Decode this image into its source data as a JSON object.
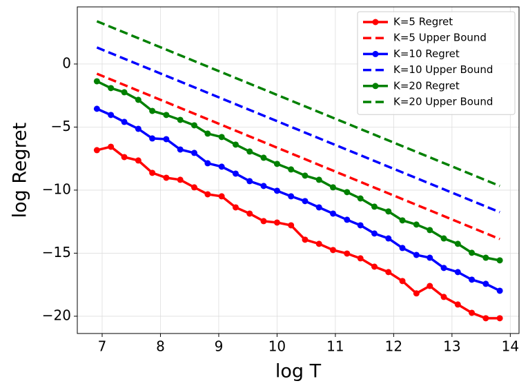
{
  "chart_data": {
    "type": "line",
    "xlabel": "log T",
    "ylabel": "log Regret",
    "xlim": [
      6.574,
      14.15
    ],
    "ylim": [
      -21.37,
      4.53
    ],
    "xticks": [
      7,
      8,
      9,
      10,
      11,
      12,
      13,
      14
    ],
    "yticks": [
      0,
      -5,
      -10,
      -15,
      -20
    ],
    "yticks_display": [
      {
        "value": 0,
        "label": "0"
      },
      {
        "value": -5,
        "label": "−5"
      },
      {
        "value": -10,
        "label": "−10"
      },
      {
        "value": -15,
        "label": "−15"
      },
      {
        "value": -20,
        "label": "−20"
      }
    ],
    "grid": true,
    "legend": "upper right",
    "x": [
      6.91,
      7.15,
      7.38,
      7.62,
      7.86,
      8.1,
      8.34,
      8.58,
      8.81,
      9.05,
      9.29,
      9.53,
      9.77,
      10.0,
      10.24,
      10.48,
      10.72,
      10.96,
      11.2,
      11.43,
      11.67,
      11.91,
      12.15,
      12.39,
      12.62,
      12.86,
      13.1,
      13.34,
      13.58,
      13.82
    ],
    "series": [
      {
        "name": "K=5 Regret",
        "color": "#ff0000",
        "linestyle": "solid",
        "marker": "o",
        "values": [
          -6.83,
          -6.56,
          -7.38,
          -7.65,
          -8.63,
          -9.02,
          -9.18,
          -9.78,
          -10.33,
          -10.49,
          -11.37,
          -11.86,
          -12.46,
          -12.57,
          -12.79,
          -13.93,
          -14.26,
          -14.75,
          -15.03,
          -15.41,
          -16.07,
          -16.5,
          -17.21,
          -18.19,
          -17.6,
          -18.47,
          -19.07,
          -19.73,
          -20.16,
          -20.16
        ]
      },
      {
        "name": "K=5 Upper Bound",
        "color": "#ff0000",
        "linestyle": "dashed",
        "marker": "none",
        "x": [
          6.91,
          13.82
        ],
        "values": [
          -0.77,
          -13.88
        ]
      },
      {
        "name": "K=10 Regret",
        "color": "#0000ff",
        "linestyle": "solid",
        "marker": "o",
        "values": [
          -3.55,
          -4.04,
          -4.59,
          -5.14,
          -5.9,
          -5.96,
          -6.78,
          -7.05,
          -7.87,
          -8.14,
          -8.69,
          -9.29,
          -9.67,
          -10.05,
          -10.49,
          -10.87,
          -11.37,
          -11.86,
          -12.35,
          -12.79,
          -13.44,
          -13.83,
          -14.59,
          -15.14,
          -15.36,
          -16.17,
          -16.5,
          -17.1,
          -17.43,
          -17.98
        ]
      },
      {
        "name": "K=10 Upper Bound",
        "color": "#0000ff",
        "linestyle": "dashed",
        "marker": "none",
        "x": [
          6.91,
          13.82
        ],
        "values": [
          1.31,
          -11.75
        ]
      },
      {
        "name": "K=20 Regret",
        "color": "#008000",
        "linestyle": "solid",
        "marker": "o",
        "values": [
          -1.37,
          -1.91,
          -2.24,
          -2.84,
          -3.72,
          -4.04,
          -4.43,
          -4.86,
          -5.52,
          -5.79,
          -6.39,
          -6.94,
          -7.43,
          -7.92,
          -8.36,
          -8.85,
          -9.18,
          -9.78,
          -10.16,
          -10.66,
          -11.31,
          -11.69,
          -12.4,
          -12.73,
          -13.17,
          -13.83,
          -14.26,
          -14.97,
          -15.36,
          -15.57
        ]
      },
      {
        "name": "K=20 Upper Bound",
        "color": "#008000",
        "linestyle": "dashed",
        "marker": "none",
        "x": [
          6.91,
          13.82
        ],
        "values": [
          3.39,
          -9.67
        ]
      }
    ]
  }
}
